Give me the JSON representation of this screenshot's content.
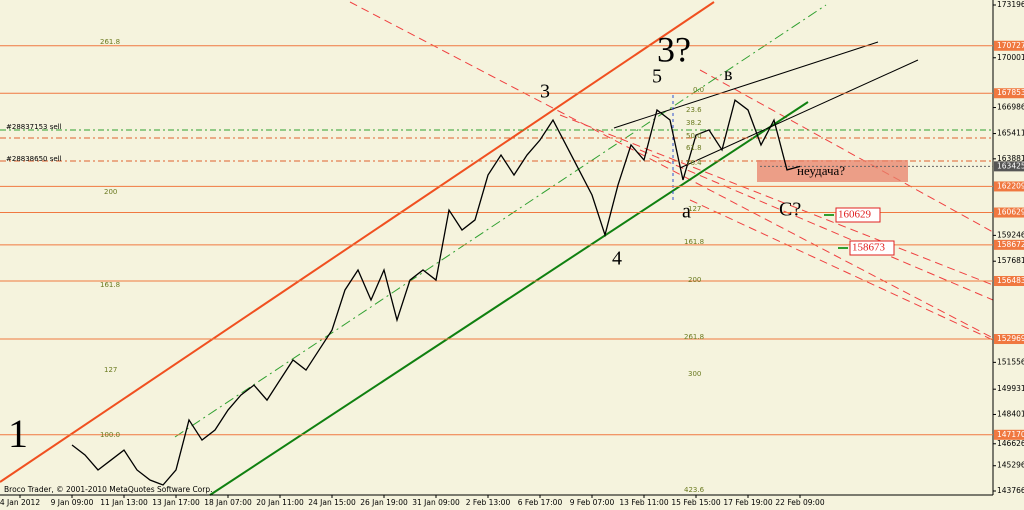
{
  "chart_data": {
    "type": "line",
    "categories": [
      "4 Jan 2012",
      null,
      null,
      null,
      "9 Jan 09:00",
      null,
      null,
      null,
      "11 Jan 13:00",
      null,
      null,
      null,
      "13 Jan 17:00",
      null,
      null,
      null,
      "18 Jan 07:00",
      null,
      null,
      null,
      "20 Jan 11:00",
      null,
      null,
      null,
      "24 Jan 15:00",
      null,
      null,
      null,
      "26 Jan 19:00",
      null,
      null,
      null,
      "31 Jan 09:00",
      null,
      null,
      null,
      "2 Feb 13:00",
      null,
      null,
      null,
      "6 Feb 17:00",
      null,
      null,
      null,
      "9 Feb 07:00",
      null,
      null,
      null,
      "13 Feb 11:00",
      null,
      null,
      null,
      "15 Feb 15:00",
      null,
      null,
      null,
      "17 Feb 19:00",
      null,
      null,
      null,
      "22 Feb 09:00"
    ],
    "values": [
      null,
      null,
      null,
      null,
      146550,
      145950,
      145040,
      145640,
      146245,
      145040,
      144430,
      144130,
      145040,
      148070,
      146850,
      147460,
      148670,
      149580,
      150180,
      149270,
      150490,
      151700,
      151090,
      152300,
      153510,
      155940,
      157150,
      155330,
      157150,
      154120,
      156540,
      157150,
      156540,
      160780,
      159570,
      160180,
      162900,
      164110,
      162900,
      164110,
      165020,
      166230,
      164720,
      163210,
      161690,
      159270,
      162300,
      164720,
      163810,
      166840,
      166230,
      162600,
      165320,
      165630,
      164420,
      167440,
      166840,
      164720,
      166230,
      163210,
      163425
    ],
    "color": "#000000",
    "ylim": [
      143766,
      173196
    ],
    "yticks": [
      173196,
      170001,
      166986,
      165411,
      163881,
      159246,
      157681,
      151556,
      149931,
      148401,
      146626,
      145296,
      143766
    ],
    "levels": [
      170727,
      167853,
      162209,
      160629,
      158672,
      156483,
      152969,
      147170
    ],
    "level_color": "#f07840",
    "last_price": 163425,
    "annotations": [
      "1",
      "3",
      "4",
      "5",
      "3?",
      "в",
      "a",
      "C?",
      "неудача?",
      "#28837153 sell",
      "#28838650 sell",
      "261.8",
      "200",
      "161.8",
      "127",
      "100.0",
      "0.0",
      "23.6",
      "38.2",
      "50.0",
      "61.8",
      "76.4",
      "127",
      "161.8",
      "200",
      "261.8",
      "300",
      "423.6",
      "160629",
      "158673",
      "Broco Trader, © 2001-2010 MetaQuotes Software Corp."
    ]
  }
}
